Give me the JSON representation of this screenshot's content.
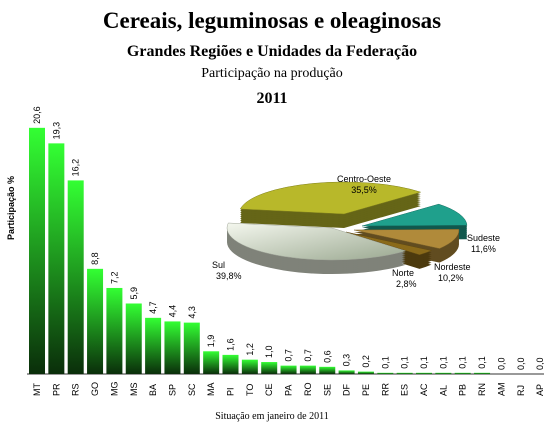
{
  "header": {
    "title": "Cereais, leguminosas e oleaginosas",
    "subtitle": "Grandes Regiões e Unidades da Federação",
    "subtitle2": "Participação na produção",
    "year": "2011"
  },
  "footer": {
    "note": "Situação em janeiro de 2011"
  },
  "colors": {
    "bar_top": "#33ff33",
    "bar_bottom": "#0a2e0a"
  },
  "chart_data": [
    {
      "type": "bar",
      "ylabel": "Participação %",
      "categories": [
        "MT",
        "PR",
        "RS",
        "GO",
        "MG",
        "MS",
        "BA",
        "SP",
        "SC",
        "MA",
        "PI",
        "TO",
        "CE",
        "PA",
        "RO",
        "SE",
        "DF",
        "PE",
        "RR",
        "ES",
        "AC",
        "AL",
        "PB",
        "RN",
        "AM",
        "RJ",
        "AP"
      ],
      "values": [
        20.6,
        19.3,
        16.2,
        8.8,
        7.2,
        5.9,
        4.7,
        4.4,
        4.3,
        1.9,
        1.6,
        1.2,
        1.0,
        0.7,
        0.7,
        0.6,
        0.3,
        0.2,
        0.1,
        0.1,
        0.1,
        0.1,
        0.1,
        0.1,
        0.0,
        0.0,
        0.0
      ],
      "labels": [
        "20,6",
        "19,3",
        "16,2",
        "8,8",
        "7,2",
        "5,9",
        "4,7",
        "4,4",
        "4,3",
        "1,9",
        "1,6",
        "1,2",
        "1,0",
        "0,7",
        "0,7",
        "0,6",
        "0,3",
        "0,2",
        "0,1",
        "0,1",
        "0,1",
        "0,1",
        "0,1",
        "0,1",
        "0,0",
        "0,0",
        "0,0"
      ]
    },
    {
      "type": "pie",
      "slices": [
        {
          "name": "Centro-Oeste",
          "value": 35.5,
          "label": "35,5%",
          "color": "#b8b82a"
        },
        {
          "name": "Sudeste",
          "value": 11.6,
          "label": "11,6%",
          "color": "#1fa08c"
        },
        {
          "name": "Nordeste",
          "value": 10.2,
          "label": "10,2%",
          "color": "#b08a3a"
        },
        {
          "name": "Norte",
          "value": 2.8,
          "label": "2,8%",
          "color": "#8a6a1a"
        },
        {
          "name": "Sul",
          "value": 39.8,
          "label": "39,8%",
          "color": "#e6eddc"
        }
      ]
    }
  ]
}
